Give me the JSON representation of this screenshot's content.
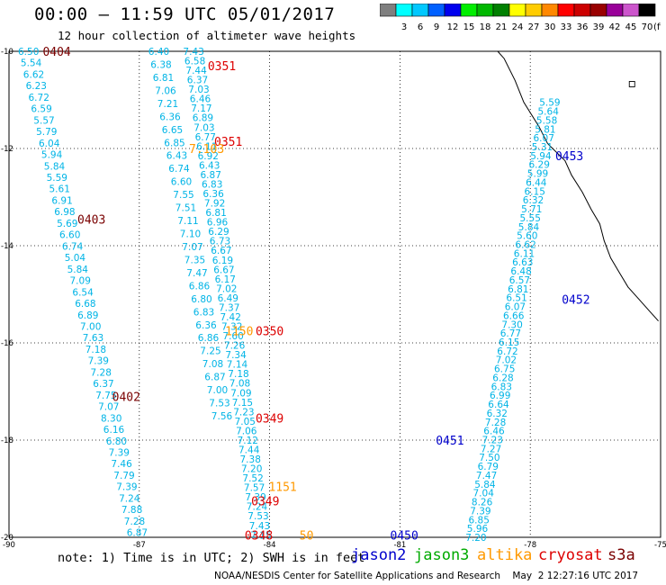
{
  "header": {
    "title": "00:00 – 11:59 UTC 05/01/2017",
    "subtitle": "12 hour collection of altimeter wave heights"
  },
  "colorbar": {
    "unit": "(ft)",
    "bins": [
      {
        "label": "",
        "color": "#7f7f7f"
      },
      {
        "label": "3",
        "color": "#00ffff"
      },
      {
        "label": "6",
        "color": "#00c8ff"
      },
      {
        "label": "9",
        "color": "#0060ff"
      },
      {
        "label": "12",
        "color": "#0000ee"
      },
      {
        "label": "15",
        "color": "#00ee00"
      },
      {
        "label": "18",
        "color": "#00b800"
      },
      {
        "label": "21",
        "color": "#008000"
      },
      {
        "label": "24",
        "color": "#ffff00"
      },
      {
        "label": "27",
        "color": "#ffcc00"
      },
      {
        "label": "30",
        "color": "#ff8800"
      },
      {
        "label": "33",
        "color": "#ff0000"
      },
      {
        "label": "36",
        "color": "#cc0000"
      },
      {
        "label": "39",
        "color": "#990000"
      },
      {
        "label": "42",
        "color": "#990099"
      },
      {
        "label": "45",
        "color": "#cc55cc"
      },
      {
        "label": "70",
        "color": "#000000"
      }
    ]
  },
  "map": {
    "lon_range": [
      -90,
      -75
    ],
    "lat_range": [
      -20,
      -10
    ],
    "lon_ticks": [
      "-90",
      "-87",
      "-84",
      "-81",
      "-78",
      "-75"
    ],
    "lat_ticks": [
      "-10",
      "-12",
      "-14",
      "-16",
      "-18",
      "-20"
    ],
    "grid": "dotted",
    "value_color": "#00b4e6",
    "passes": [
      {
        "id": "A",
        "start": [
          -89.55,
          -10.0
        ],
        "end": [
          -87.05,
          -19.9
        ],
        "values": [
          "6.50",
          "5.54",
          "6.62",
          "6.23",
          "6.72",
          "6.59",
          "5.57",
          "5.79",
          "6.04",
          "5.94",
          "5.84",
          "5.59",
          "5.61",
          "6.91",
          "6.98",
          "5.69",
          "6.60",
          "6.74",
          "5.04",
          "5.84",
          "7.09",
          "6.54",
          "6.68",
          "6.89",
          "7.00",
          "7.63",
          "7.18",
          "7.39",
          "7.28",
          "6.37",
          "7.75",
          "7.07",
          "8.30",
          "6.16",
          "6.80",
          "7.39",
          "7.46",
          "7.79",
          "7.39",
          "7.24",
          "7.88",
          "7.28",
          "6.87"
        ]
      },
      {
        "id": "B",
        "start": [
          -86.55,
          -10.0
        ],
        "end": [
          -85.1,
          -17.5
        ],
        "values": [
          "6.40",
          "6.38",
          "6.81",
          "7.06",
          "7.21",
          "6.36",
          "6.65",
          "6.85",
          "6.43",
          "6.74",
          "6.60",
          "7.55",
          "7.51",
          "7.11",
          "7.10",
          "7.07",
          "7.35",
          "7.47",
          "6.86",
          "6.80",
          "6.83",
          "6.36",
          "6.86",
          "7.25",
          "7.08",
          "6.87",
          "7.00",
          "7.53",
          "7.56"
        ]
      },
      {
        "id": "C",
        "start": [
          -85.75,
          -10.0
        ],
        "end": [
          -84.2,
          -19.95
        ],
        "values": [
          "7.43",
          "6.58",
          "7.44",
          "6.37",
          "7.03",
          "6.46",
          "7.17",
          "6.89",
          "7.03",
          "6.77",
          "6.11",
          "6.92",
          "6.43",
          "6.87",
          "6.83",
          "6.36",
          "7.92",
          "6.81",
          "6.96",
          "6.29",
          "6.73",
          "6.67",
          "6.19",
          "6.67",
          "6.17",
          "7.02",
          "6.49",
          "7.37",
          "7.42",
          "7.32",
          "7.60",
          "7.26",
          "7.34",
          "7.14",
          "7.18",
          "7.08",
          "7.09",
          "7.15",
          "7.23",
          "7.05",
          "7.06",
          "7.12",
          "7.44",
          "7.38",
          "7.20",
          "7.52",
          "7.57",
          "7.39",
          "7.24",
          "7.53",
          "7.43",
          "7.15"
        ]
      },
      {
        "id": "D",
        "start": [
          -79.25,
          -20.0
        ],
        "end": [
          -77.55,
          -11.05
        ],
        "values": [
          "7.20",
          "5.96",
          "6.85",
          "7.39",
          "8.26",
          "7.04",
          "5.84",
          "7.47",
          "6.79",
          "7.50",
          "7.27",
          "7.23",
          "6.46",
          "7.28",
          "6.32",
          "6.64",
          "6.99",
          "6.83",
          "6.28",
          "6.75",
          "7.02",
          "6.72",
          "6.15",
          "6.77",
          "7.30",
          "6.66",
          "6.07",
          "6.51",
          "6.81",
          "6.57",
          "6.48",
          "6.63",
          "6.11",
          "6.62",
          "5.60",
          "5.84",
          "5.55",
          "5.71",
          "6.32",
          "6.15",
          "6.44",
          "5.99",
          "6.29",
          "5.94",
          "5.31",
          "6.07",
          "5.81",
          "5.58",
          "5.64",
          "5.59"
        ]
      }
    ],
    "track_labels": [
      {
        "text": "0404",
        "lon": -88.9,
        "lat": -10.0,
        "color": "#7a0000"
      },
      {
        "text": "0403",
        "lon": -88.1,
        "lat": -13.45,
        "color": "#7a0000"
      },
      {
        "text": "0402",
        "lon": -87.3,
        "lat": -17.1,
        "color": "#7a0000"
      },
      {
        "text": "0351",
        "lon": -85.1,
        "lat": -10.3,
        "color": "#dd0000"
      },
      {
        "text": "0351",
        "lon": -84.95,
        "lat": -11.85,
        "color": "#dd0000"
      },
      {
        "text": "7.103",
        "lon": -85.45,
        "lat": -12.0,
        "color": "#ff9900"
      },
      {
        "text": "1150",
        "lon": -84.7,
        "lat": -15.75,
        "color": "#ff9900"
      },
      {
        "text": "0350",
        "lon": -84.0,
        "lat": -15.75,
        "color": "#dd0000"
      },
      {
        "text": "0349",
        "lon": -84.0,
        "lat": -17.55,
        "color": "#dd0000"
      },
      {
        "text": "1151",
        "lon": -83.7,
        "lat": -18.95,
        "color": "#ff9900"
      },
      {
        "text": "0349",
        "lon": -84.1,
        "lat": -19.25,
        "color": "#dd0000"
      },
      {
        "text": "0348",
        "lon": -84.25,
        "lat": -19.95,
        "color": "#dd0000"
      },
      {
        "text": "50",
        "lon": -83.15,
        "lat": -19.95,
        "color": "#ff9900"
      },
      {
        "text": "0453",
        "lon": -77.1,
        "lat": -12.15,
        "color": "#0000cc"
      },
      {
        "text": "0452",
        "lon": -76.95,
        "lat": -15.1,
        "color": "#0000cc"
      },
      {
        "text": "0451",
        "lon": -79.85,
        "lat": -18.0,
        "color": "#0000cc"
      },
      {
        "text": "0450",
        "lon": -80.9,
        "lat": -19.95,
        "color": "#0000cc"
      }
    ]
  },
  "footer": {
    "note": "note: 1) Time is in UTC; 2) SWH is in feet",
    "satellites": [
      {
        "name": "jason2",
        "color": "#0000cc"
      },
      {
        "name": "jason3",
        "color": "#00aa00"
      },
      {
        "name": "altika",
        "color": "#ff9900"
      },
      {
        "name": "cryosat",
        "color": "#dd0000"
      },
      {
        "name": "s3a",
        "color": "#7a0000"
      }
    ],
    "credit": "NOAA/NESDIS Center for Satellite Applications and Research    May  2 12:27:16 UTC 2017"
  }
}
